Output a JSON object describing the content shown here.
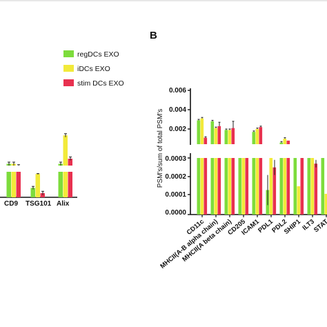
{
  "panel_label": "B",
  "legend": [
    {
      "label": "regDCs EXO",
      "color": "#7ddc3c"
    },
    {
      "label": "iDCs EXO",
      "color": "#f2ea3a"
    },
    {
      "label": "stim DCs EXO",
      "color": "#e8314f"
    }
  ],
  "colors": {
    "reg": "#7ddc3c",
    "idc": "#f2ea3a",
    "stim": "#e8314f"
  },
  "chart_data": [
    {
      "type": "bar",
      "panel": "A",
      "categories": [
        "CD9",
        "TSG101",
        "Alix"
      ],
      "series": [
        {
          "name": "regDCs EXO",
          "values": [
            0.72,
            0.25,
            0.72
          ]
        },
        {
          "name": "iDCs EXO",
          "values": [
            0.72,
            0.62,
            1.05
          ]
        },
        {
          "name": "stim DCs EXO",
          "values": [
            0.7,
            0.11,
            0.78
          ]
        }
      ],
      "errors": [
        [
          0.02,
          0.04,
          0.02
        ],
        [
          0.02,
          0.01,
          0.02
        ],
        [
          0.01,
          0.05,
          0.02
        ]
      ],
      "ylim": [
        0,
        1.1
      ],
      "axis_break": true
    },
    {
      "type": "bar",
      "panel": "B",
      "ylabel": "PSM's/sum of total PSM's",
      "categories": [
        "CD11c",
        "MHCII(A-B alpha chain)",
        "MHCII(A beta chain)",
        "CD205",
        "ICAM1",
        "PDL1",
        "PDL2",
        "SHIP1",
        "ILT3",
        "STAT"
      ],
      "series": [
        {
          "name": "regDCs EXO",
          "values": [
            0.0029,
            0.0028,
            0.0019,
            0.0003,
            0.0017,
            0.00013,
            0.0006,
            0.0003,
            0.0003,
            0.0003
          ]
        },
        {
          "name": "iDCs EXO",
          "values": [
            0.0031,
            0.0021,
            0.0019,
            0.0003,
            0.002,
            0.0003,
            0.001,
            0.00015,
            0.0003,
            0.00011
          ]
        },
        {
          "name": "stim DCs EXO",
          "values": [
            0.0011,
            0.0023,
            0.0021,
            0.0003,
            0.0022,
            0.00025,
            0.0008,
            0.0003,
            0.00027,
            0.00013
          ]
        }
      ],
      "errors": [
        [
          0.0001,
          0.0001,
          0.0001,
          0.0,
          0.0001,
          8e-05,
          0.0001,
          0.0,
          0.0,
          0.0
        ],
        [
          0.0001,
          0.0001,
          0.0001,
          0.0,
          0.0001,
          0.0,
          0.0001,
          0.0,
          0.0,
          0.0
        ],
        [
          0.0001,
          0.0004,
          0.0007,
          0.0,
          0.0001,
          4e-05,
          0.0,
          0.0,
          2e-05,
          4e-05
        ]
      ],
      "upper_ticks": [
        "0.002",
        "0.004",
        "0.006"
      ],
      "lower_ticks": [
        "0.0000",
        "0.0001",
        "0.0002",
        "0.0003"
      ],
      "upper_range": [
        0.0005,
        0.0065
      ],
      "lower_range": [
        0,
        0.0003
      ],
      "axis_break": true
    }
  ]
}
